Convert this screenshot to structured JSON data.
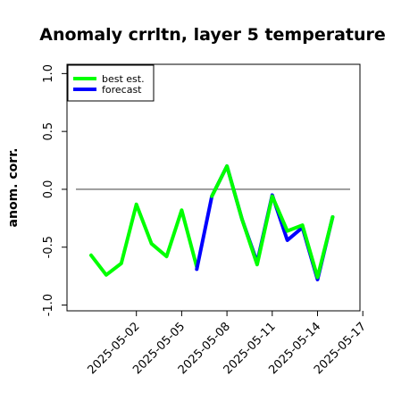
{
  "chart_data": {
    "type": "line",
    "title": "Anomaly crrltn, layer 5 temperature",
    "xlabel": "",
    "ylabel": "anom. corr.",
    "ylim": [
      -1.05,
      1.08
    ],
    "yticks": [
      "-1.0",
      "-0.5",
      "0.0",
      "0.5",
      "1.0"
    ],
    "ytick_values": [
      -1.0,
      -0.5,
      0.0,
      0.5,
      1.0
    ],
    "x": [
      "2025-04-29",
      "2025-04-30",
      "2025-05-01",
      "2025-05-02",
      "2025-05-03",
      "2025-05-04",
      "2025-05-05",
      "2025-05-06",
      "2025-05-07",
      "2025-05-08",
      "2025-05-09",
      "2025-05-10",
      "2025-05-11",
      "2025-05-12",
      "2025-05-13",
      "2025-05-14",
      "2025-05-15",
      "2025-05-16",
      "2025-05-17"
    ],
    "xticks": [
      "2025-05-02",
      "2025-05-05",
      "2025-05-08",
      "2025-05-11",
      "2025-05-14",
      "2025-05-17"
    ],
    "highlight_tick": "2025-05-08",
    "reference_line": 0.0,
    "legend_position": "top-left",
    "series": [
      {
        "name": "best est.",
        "color": "#00ff00",
        "values": [
          -0.57,
          -0.74,
          -0.64,
          -0.13,
          -0.47,
          -0.58,
          -0.18,
          -0.67,
          null,
          null,
          null,
          null,
          null,
          null,
          null,
          null,
          null,
          null,
          null
        ]
      },
      {
        "name": "forecast",
        "color": "#0000ff",
        "values": [
          null,
          null,
          null,
          null,
          null,
          null,
          null,
          -0.69,
          -0.06,
          0.2,
          -0.26,
          -0.63,
          -0.05,
          -0.44,
          -0.33,
          -0.78,
          -0.24,
          null,
          null
        ]
      },
      {
        "name": "",
        "color": "#00ff00",
        "values": [
          null,
          null,
          null,
          null,
          null,
          null,
          null,
          null,
          -0.06,
          0.2,
          -0.26,
          -0.65,
          -0.06,
          -0.36,
          -0.31,
          -0.76,
          -0.24,
          null,
          null
        ]
      }
    ]
  }
}
